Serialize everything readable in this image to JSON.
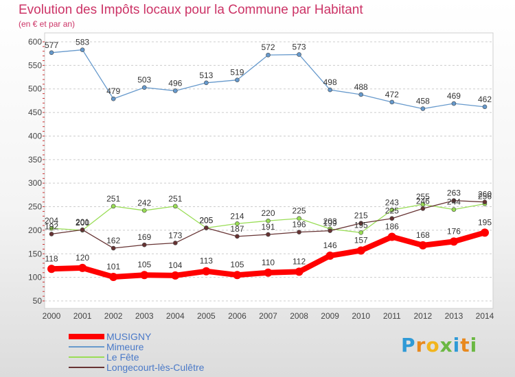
{
  "header": {
    "title": "Evolution des Impôts locaux pour la Commune par Habitant",
    "subtitle": "(en € et par an)"
  },
  "logo": {
    "text": "Proxiti"
  },
  "chart_data": {
    "type": "line",
    "title": "Evolution des Impôts locaux pour la Commune par Habitant",
    "subtitle": "(en € et par an)",
    "xlabel": "",
    "ylabel": "",
    "categories": [
      "2000",
      "2001",
      "2002",
      "2003",
      "2004",
      "2005",
      "2006",
      "2007",
      "2008",
      "2009",
      "2010",
      "2011",
      "2012",
      "2013",
      "2014"
    ],
    "ylim": [
      50,
      600
    ],
    "yticks": [
      50,
      100,
      150,
      200,
      250,
      300,
      350,
      400,
      450,
      500,
      550,
      600
    ],
    "grid": "horizontal dashed",
    "legend_position": "bottom-left",
    "series": [
      {
        "name": "MUSIGNY",
        "color": "#ff0000",
        "emphasis": true,
        "values": [
          118,
          120,
          101,
          105,
          104,
          113,
          105,
          110,
          112,
          146,
          157,
          186,
          168,
          176,
          195
        ]
      },
      {
        "name": "Mimeure",
        "color": "#6699cc",
        "values": [
          577,
          583,
          479,
          503,
          496,
          513,
          519,
          572,
          573,
          498,
          488,
          472,
          458,
          469,
          462
        ]
      },
      {
        "name": "Le Fête",
        "color": "#99dd55",
        "values": [
          204,
          200,
          251,
          242,
          251,
          205,
          214,
          220,
          225,
          203,
          195,
          243,
          255,
          244,
          256
        ]
      },
      {
        "name": "Longecourt-lès-Culêtre",
        "color": "#663333",
        "values": [
          192,
          201,
          162,
          169,
          173,
          205,
          187,
          191,
          196,
          199,
          215,
          225,
          246,
          263,
          260
        ]
      }
    ]
  }
}
